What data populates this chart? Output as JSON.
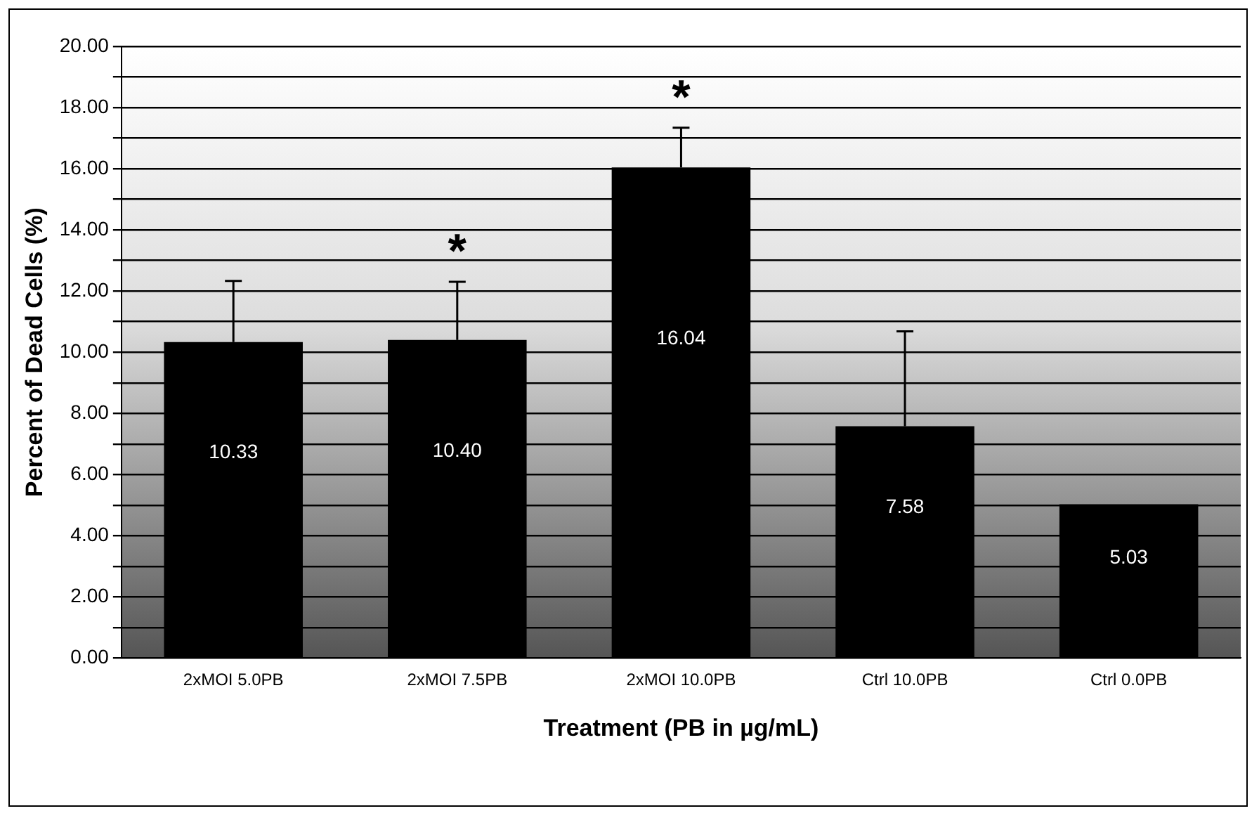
{
  "chart_data": {
    "type": "bar",
    "xlabel": "Treatment (PB in µg/mL)",
    "ylabel": "Percent of Dead Cells (%)",
    "categories": [
      "2xMOI 5.0PB",
      "2xMOI 7.5PB",
      "2xMOI 10.0PB",
      "Ctrl 10.0PB",
      "Ctrl 0.0PB"
    ],
    "values": [
      10.33,
      10.4,
      16.04,
      7.58,
      5.03
    ],
    "color": "#000000",
    "errors": [
      2.0,
      1.9,
      1.3,
      3.1,
      null
    ],
    "value_labels": [
      "10.33",
      "10.40",
      "16.04",
      "7.58",
      "5.03"
    ],
    "ylim": [
      0,
      20
    ],
    "yticks": [
      {
        "value": 0,
        "label": "0.00"
      },
      {
        "value": 1,
        "label": null
      },
      {
        "value": 2,
        "label": "2.00"
      },
      {
        "value": 3,
        "label": null
      },
      {
        "value": 4,
        "label": "4.00"
      },
      {
        "value": 5,
        "label": null
      },
      {
        "value": 6,
        "label": "6.00"
      },
      {
        "value": 7,
        "label": null
      },
      {
        "value": 8,
        "label": "8.00"
      },
      {
        "value": 9,
        "label": null
      },
      {
        "value": 10,
        "label": "10.00"
      },
      {
        "value": 11,
        "label": null
      },
      {
        "value": 12,
        "label": "12.00"
      },
      {
        "value": 13,
        "label": null
      },
      {
        "value": 14,
        "label": "14.00"
      },
      {
        "value": 15,
        "label": null
      },
      {
        "value": 16,
        "label": "16.00"
      },
      {
        "value": 17,
        "label": null
      },
      {
        "value": 18,
        "label": "18.00"
      },
      {
        "value": 19,
        "label": null
      },
      {
        "value": 20,
        "label": "20.00"
      }
    ],
    "grid": "y",
    "legend": false,
    "annotations": [
      "*",
      "*"
    ]
  }
}
